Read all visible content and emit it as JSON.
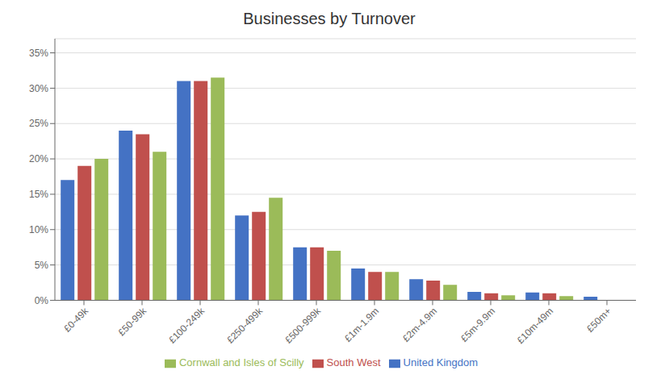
{
  "chart_data": {
    "type": "bar",
    "title": "Businesses by Turnover",
    "categories": [
      "£0-49k",
      "£50-99k",
      "£100-249k",
      "£250-499k",
      "£500-999k",
      "£1m-1.9m",
      "£2m-4.9m",
      "£5m-9.9m",
      "£10m-49m",
      "£50m+"
    ],
    "series": [
      {
        "name": "United Kingdom",
        "color": "#4472C4",
        "values": [
          17,
          24,
          31,
          12,
          7.5,
          4.5,
          3.0,
          1.2,
          1.1,
          0.5
        ]
      },
      {
        "name": "South West",
        "color": "#C0504D",
        "values": [
          19,
          23.5,
          31,
          12.5,
          7.5,
          4.0,
          2.8,
          1.0,
          1.0,
          0
        ]
      },
      {
        "name": "Cornwall and Isles of Scilly",
        "color": "#9BBB59",
        "values": [
          20,
          21,
          31.5,
          14.5,
          7.0,
          4.0,
          2.2,
          0.7,
          0.6,
          0
        ]
      }
    ],
    "ylim": [
      0,
      37
    ],
    "yticks": [
      {
        "value": 0,
        "label": "0%"
      },
      {
        "value": 5,
        "label": "5%"
      },
      {
        "value": 10,
        "label": "10%"
      },
      {
        "value": 15,
        "label": "15%"
      },
      {
        "value": 20,
        "label": "20%"
      },
      {
        "value": 25,
        "label": "25%"
      },
      {
        "value": 30,
        "label": "30%"
      },
      {
        "value": 35,
        "label": "35%"
      }
    ],
    "grid": true,
    "legend": "bottom"
  }
}
